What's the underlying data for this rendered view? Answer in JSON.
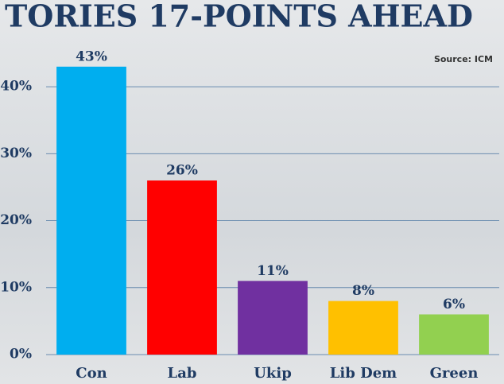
{
  "chart_data": {
    "type": "bar",
    "title": "TORIES 17-POINTS AHEAD",
    "source": "Source: ICM",
    "categories": [
      "Con",
      "Lab",
      "Ukip",
      "Lib Dem",
      "Green"
    ],
    "values": [
      43,
      26,
      11,
      8,
      6
    ],
    "value_labels": [
      "43%",
      "26%",
      "11%",
      "8%",
      "6%"
    ],
    "colors": [
      "#00aeef",
      "#ff0000",
      "#7030a0",
      "#ffc000",
      "#92d050"
    ],
    "ylim": [
      0,
      45
    ],
    "yticks": [
      {
        "value": 0,
        "label": "0%"
      },
      {
        "value": 10,
        "label": "10%"
      },
      {
        "value": 20,
        "label": "20%"
      },
      {
        "value": 30,
        "label": "30%"
      },
      {
        "value": 40,
        "label": "40%"
      }
    ],
    "grid": true
  }
}
